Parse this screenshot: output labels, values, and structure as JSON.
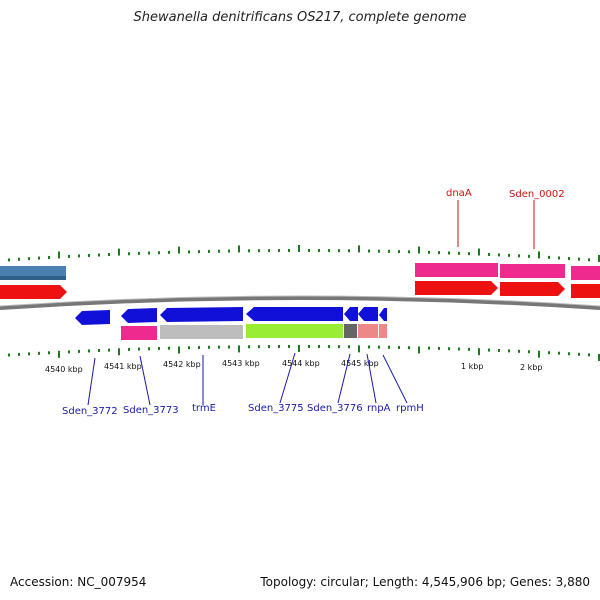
{
  "title": "Shewanella denitrificans OS217, complete genome",
  "footer": {
    "accession": "Accession: NC_007954",
    "summary": "Topology: circular; Length: 4,545,906 bp; Genes: 3,880"
  },
  "scale_labels": [
    "4540 kbp",
    "4541 kbp",
    "4542 kbp",
    "4543 kbp",
    "4544 kbp",
    "4545 kbp",
    "1 kbp",
    "2 kbp"
  ],
  "gene_labels_bottom": [
    {
      "text": "Sden_3772",
      "color": "#1a1aa6"
    },
    {
      "text": "Sden_3773",
      "color": "#1a1aa6"
    },
    {
      "text": "trmE",
      "color": "#1a1aa6"
    },
    {
      "text": "Sden_3775",
      "color": "#1a1aa6"
    },
    {
      "text": "Sden_3776",
      "color": "#1a1aa6"
    },
    {
      "text": "rnpA",
      "color": "#1a1aa6"
    },
    {
      "text": "rpmH",
      "color": "#1a1aa6"
    }
  ],
  "gene_labels_top": [
    {
      "text": "dnaA",
      "color": "#cc1111"
    },
    {
      "text": "Sden_0002",
      "color": "#cc1111"
    }
  ],
  "colors": {
    "blue_gene": "#1010d8",
    "red_gene": "#ee1111",
    "pink_gene": "#ee2a8f",
    "steel_gene": "#4a7fb0",
    "gray_gene": "#bdbdbd",
    "green_gene": "#99ee33",
    "dark_gray_gene": "#666666",
    "salmon_gene": "#ee8888",
    "tick_green": "#1d7a1d",
    "backbone": "#777777"
  }
}
